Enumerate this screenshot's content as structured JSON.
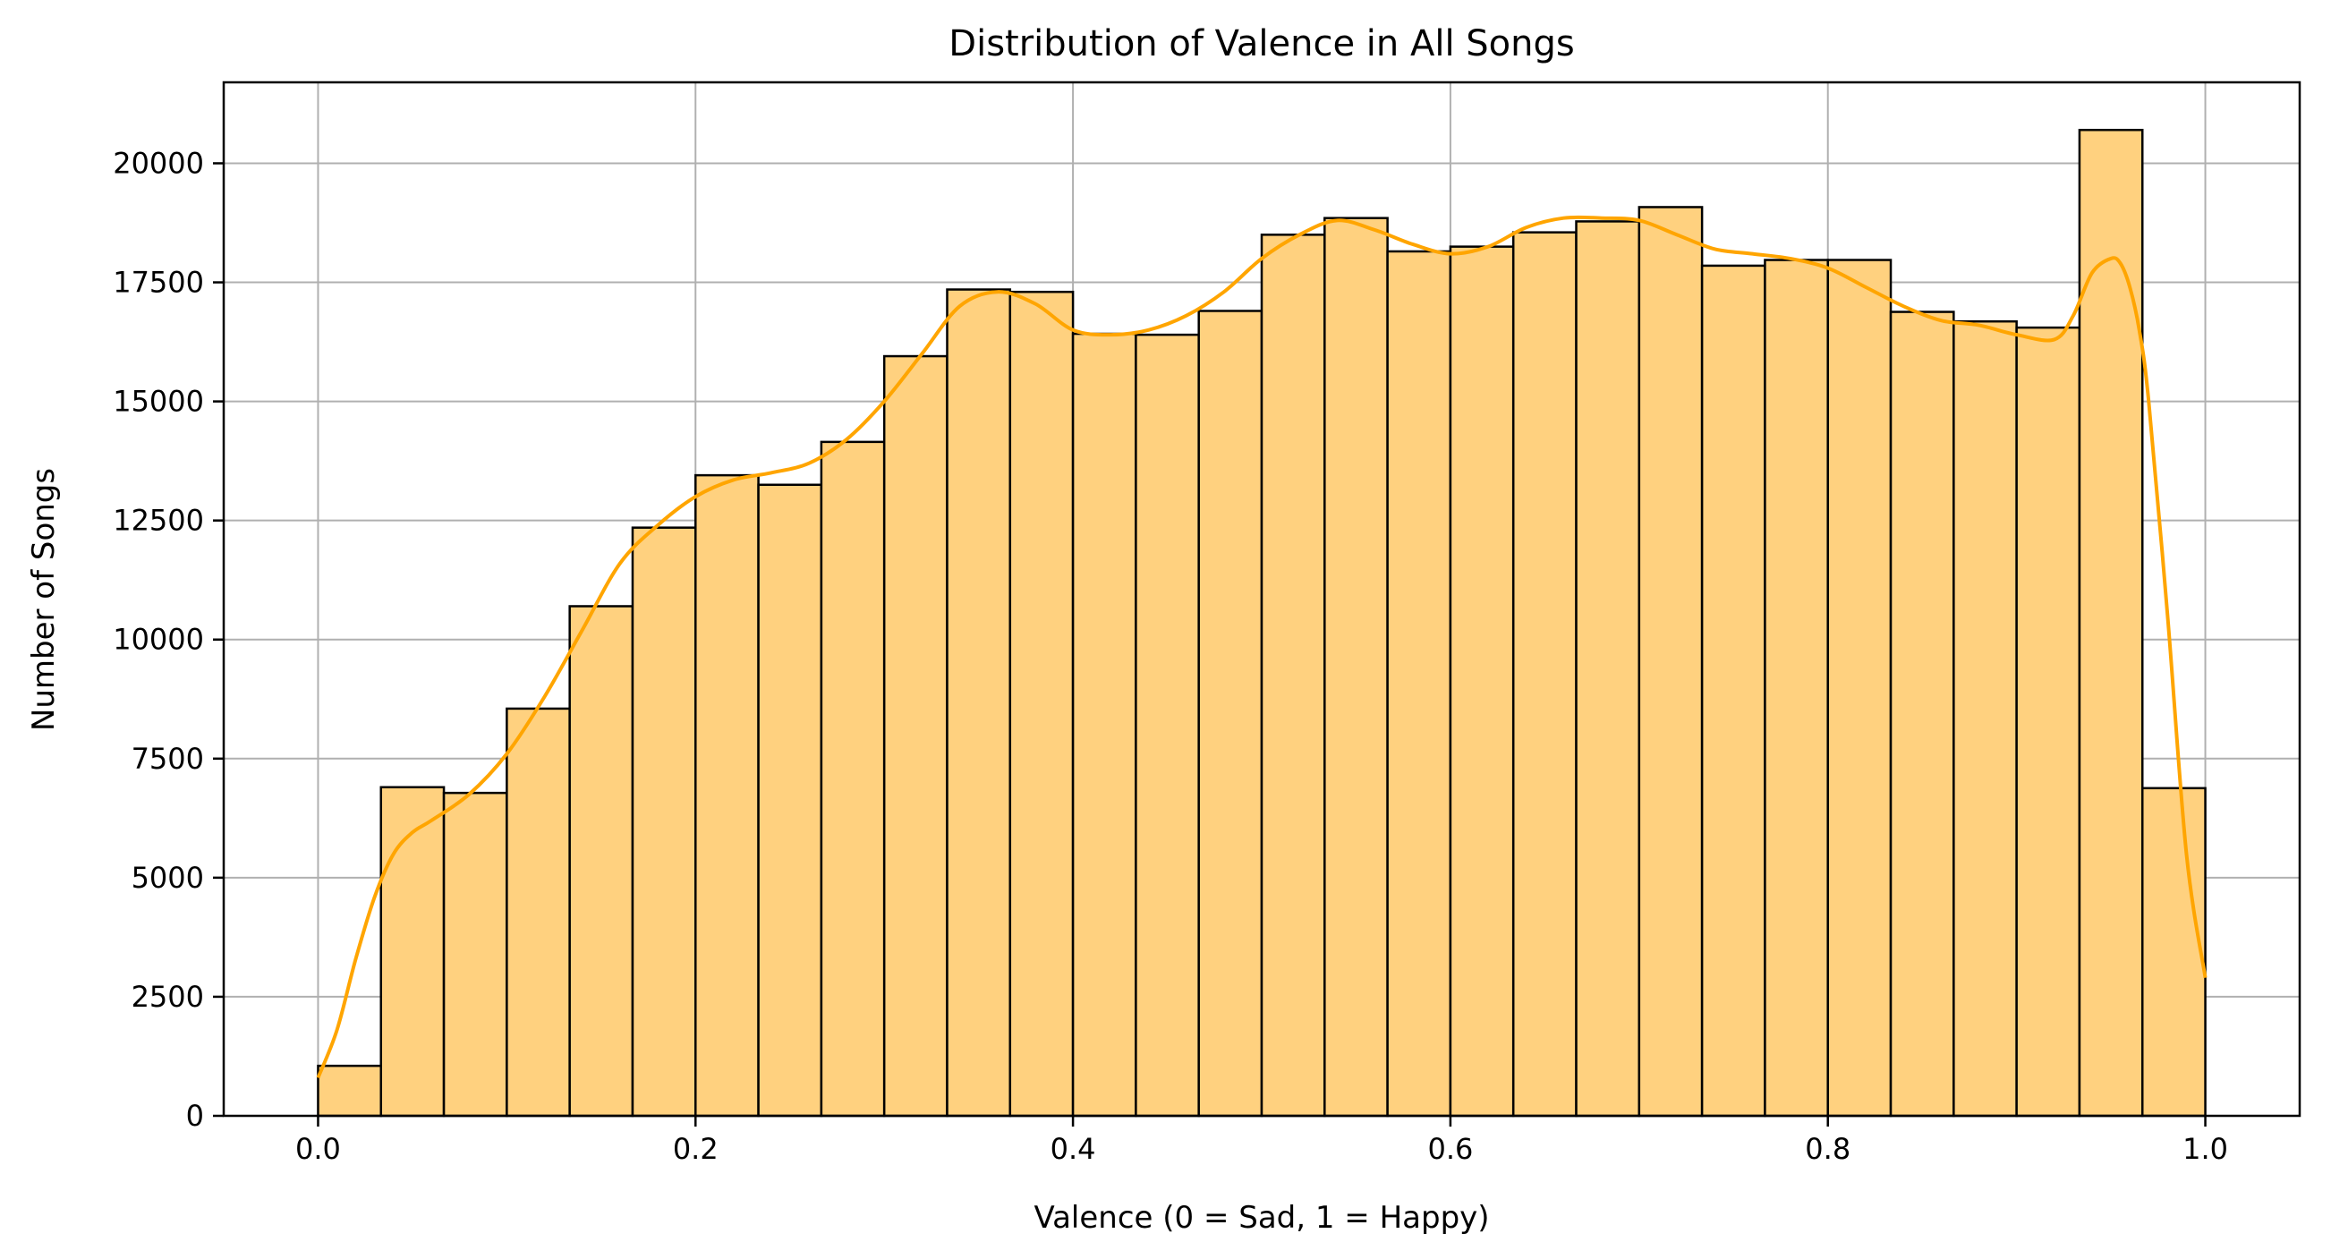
{
  "chart_data": {
    "type": "bar",
    "title": "Distribution of Valence in All Songs",
    "xlabel": "Valence (0 = Sad, 1 = Happy)",
    "ylabel": "Number of Songs",
    "xlim": [
      -0.05,
      1.05
    ],
    "ylim": [
      0,
      21700
    ],
    "grid": true,
    "x_ticks": [
      0.0,
      0.2,
      0.4,
      0.6,
      0.8,
      1.0
    ],
    "x_tick_labels": [
      "0.0",
      "0.2",
      "0.4",
      "0.6",
      "0.8",
      "1.0"
    ],
    "y_ticks": [
      0,
      2500,
      5000,
      7500,
      10000,
      12500,
      15000,
      17500,
      20000
    ],
    "y_tick_labels": [
      "0",
      "2500",
      "5000",
      "7500",
      "10000",
      "12500",
      "15000",
      "17500",
      "20000"
    ],
    "bins": {
      "start": 0.0,
      "end": 1.0,
      "count": 30,
      "counts": [
        1050,
        6900,
        6780,
        8550,
        10700,
        12350,
        13450,
        13250,
        14150,
        15950,
        17350,
        17300,
        16420,
        16400,
        16900,
        18500,
        18850,
        18150,
        18250,
        18550,
        18780,
        19080,
        17850,
        17970,
        17970,
        16880,
        16680,
        16550,
        20700,
        6880
      ]
    },
    "kde": {
      "x": [
        0.0,
        0.01,
        0.02,
        0.03,
        0.04,
        0.05,
        0.06,
        0.08,
        0.1,
        0.12,
        0.14,
        0.16,
        0.18,
        0.2,
        0.22,
        0.24,
        0.26,
        0.28,
        0.3,
        0.32,
        0.34,
        0.36,
        0.38,
        0.4,
        0.42,
        0.44,
        0.46,
        0.48,
        0.5,
        0.52,
        0.54,
        0.56,
        0.58,
        0.6,
        0.62,
        0.64,
        0.66,
        0.68,
        0.7,
        0.72,
        0.74,
        0.76,
        0.78,
        0.8,
        0.82,
        0.84,
        0.86,
        0.88,
        0.9,
        0.92,
        0.93,
        0.94,
        0.95,
        0.955,
        0.96,
        0.965,
        0.97,
        0.98,
        0.99,
        1.0
      ],
      "y": [
        800,
        1800,
        3300,
        4600,
        5500,
        5950,
        6200,
        6750,
        7600,
        8800,
        10200,
        11600,
        12400,
        13000,
        13350,
        13500,
        13700,
        14200,
        15000,
        16000,
        17000,
        17300,
        17050,
        16500,
        16400,
        16500,
        16800,
        17300,
        18000,
        18500,
        18800,
        18600,
        18300,
        18100,
        18250,
        18650,
        18850,
        18850,
        18800,
        18500,
        18200,
        18100,
        18000,
        17800,
        17400,
        17000,
        16700,
        16600,
        16400,
        16300,
        16800,
        17700,
        18000,
        17900,
        17400,
        16500,
        15000,
        10500,
        5500,
        2900
      ],
      "color": "#FFA500"
    },
    "bar_fill": "#FFD17F",
    "bar_edge": "#000000",
    "grid_color": "#B0B0B0"
  }
}
